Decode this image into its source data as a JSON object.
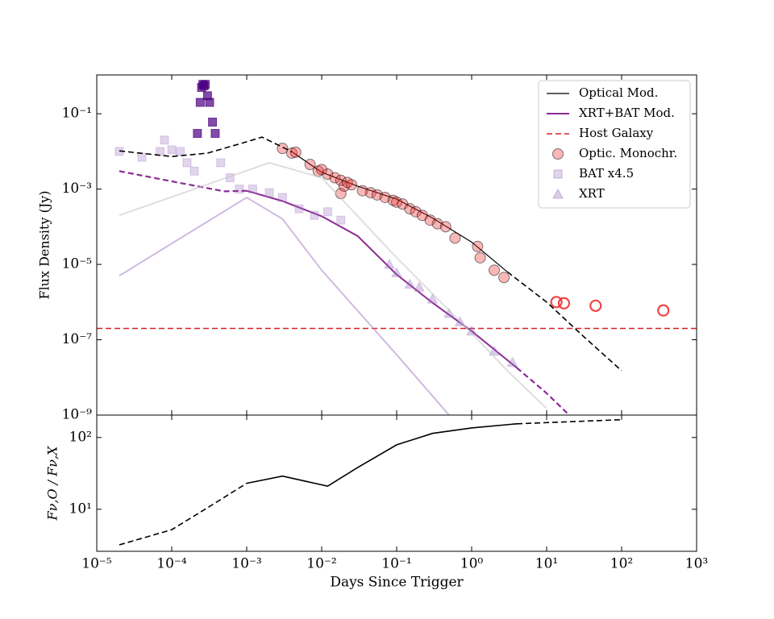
{
  "chart_data": [
    {
      "type": "line",
      "ylabel": "Flux Density (Jy)",
      "xlog": true,
      "ylog": true,
      "xlim": [
        1e-05,
        1000
      ],
      "ylim": [
        1e-09,
        1.07
      ],
      "xticks": [
        1e-05,
        0.0001,
        0.001,
        0.01,
        0.1,
        1,
        10,
        100,
        1000
      ],
      "yticks": [
        {
          "value": 0.1,
          "label": "10⁻¹"
        },
        {
          "value": 0.001,
          "label": "10⁻³"
        },
        {
          "value": 1e-05,
          "label": "10⁻⁵"
        },
        {
          "value": 1e-07,
          "label": "10⁻⁷"
        },
        {
          "value": 1e-09,
          "label": "10⁻⁹"
        }
      ],
      "legend": "upper right",
      "series": [
        {
          "name": "Optical Mod.",
          "kind": "line",
          "color": "#000000",
          "width": 1.2,
          "x": [
            0.004,
            0.01,
            0.03,
            0.1,
            0.3,
            1,
            3
          ],
          "values": [
            0.0098,
            0.0028,
            0.0012,
            0.00054,
            0.00017,
            3.9e-05,
            6.3e-06
          ]
        },
        {
          "name": "XRT+BAT Mod.",
          "kind": "line",
          "color": "#8b2c94",
          "width": 2,
          "x": [
            0.001,
            0.003,
            0.01,
            0.03,
            0.1,
            0.3,
            1,
            4
          ],
          "values": [
            0.0009,
            0.00048,
            0.00019,
            5.7e-05,
            5.4e-06,
            9.6e-07,
            1.7e-07,
            1.8e-08
          ]
        },
        {
          "name": "Host Galaxy",
          "kind": "line",
          "dash": true,
          "color": "#d62020",
          "width": 1.6,
          "x": [
            1e-05,
            1000
          ],
          "values": [
            2e-07,
            2e-07
          ]
        },
        {
          "name": "Optic. Monochr.",
          "kind": "scatter",
          "marker": "o",
          "color": "#f03030",
          "opacity": 0.35,
          "edge": "#000000",
          "x": [
            0.003,
            0.004,
            0.0045,
            0.007,
            0.009,
            0.01,
            0.012,
            0.015,
            0.018,
            0.018,
            0.02,
            0.022,
            0.025,
            0.035,
            0.045,
            0.055,
            0.07,
            0.09,
            0.1,
            0.12,
            0.15,
            0.18,
            0.22,
            0.28,
            0.35,
            0.45,
            0.6,
            1.2,
            1.3,
            2,
            2.7
          ],
          "values": [
            0.012,
            0.009,
            0.0095,
            0.0045,
            0.003,
            0.0033,
            0.0025,
            0.002,
            0.0017,
            0.00076,
            0.0012,
            0.0015,
            0.0013,
            0.0009,
            0.0008,
            0.0007,
            0.0006,
            0.0005,
            0.00045,
            0.0004,
            0.0003,
            0.00025,
            0.0002,
            0.00015,
            0.00012,
            0.0001,
            5e-05,
            3e-05,
            1.5e-05,
            7e-06,
            4.5e-06
          ]
        },
        {
          "name": "BAT x4.5",
          "kind": "scatter",
          "marker": "s",
          "color": "#9b72c0",
          "opacity": 0.3,
          "x": [
            2e-05,
            4e-05,
            7e-05,
            8e-05,
            0.0001,
            0.00013,
            0.00016,
            0.0002,
            0.00045,
            0.0006,
            0.0008,
            0.0012,
            0.002,
            0.003,
            0.005,
            0.008,
            0.012,
            0.018
          ],
          "values": [
            0.01,
            0.007,
            0.01,
            0.02,
            0.011,
            0.01,
            0.005,
            0.003,
            0.005,
            0.002,
            0.001,
            0.001,
            0.0008,
            0.0006,
            0.0003,
            0.0002,
            0.00025,
            0.00015
          ]
        },
        {
          "name": "XRT",
          "kind": "scatter",
          "marker": "^",
          "color": "#9b72c0",
          "opacity": 0.35,
          "x": [
            0.08,
            0.1,
            0.15,
            0.2,
            0.3,
            0.5,
            0.7,
            1,
            2,
            3.5
          ],
          "values": [
            1e-05,
            6e-06,
            3e-06,
            2.5e-06,
            1.2e-06,
            5e-07,
            3e-07,
            1.7e-07,
            5e-08,
            2.5e-08
          ]
        },
        {
          "kind": "line",
          "color": "#000000",
          "width": 1.6,
          "dash": true,
          "x": [
            2e-05,
            0.0001,
            0.0003,
            0.001,
            0.0016,
            0.004,
            null,
            3,
            10,
            30,
            100
          ],
          "values": [
            0.0103,
            0.0073,
            0.009,
            0.018,
            0.024,
            0.0098,
            null,
            6.3e-06,
            1e-06,
            1.3e-07,
            1.5e-08
          ]
        },
        {
          "kind": "line",
          "color": "#8b2c94",
          "width": 2.2,
          "dash": true,
          "x": [
            2e-05,
            0.0001,
            0.0005,
            0.001,
            null,
            4,
            10,
            20
          ],
          "values": [
            0.003,
            0.0016,
            0.00087,
            0.0009,
            null,
            1.8e-08,
            3.8e-09,
            1e-09
          ]
        },
        {
          "kind": "line",
          "color": "#c8c8c8",
          "width": 2,
          "opacity": 0.6,
          "x": [
            2e-05,
            0.002,
            0.01,
            0.1,
            1,
            3,
            10
          ],
          "values": [
            0.0002,
            0.005,
            0.002,
            1.5e-05,
            1.5e-07,
            1.5e-08,
            1.5e-09
          ]
        },
        {
          "kind": "line",
          "color": "#b08ccc",
          "width": 2,
          "opacity": 0.6,
          "x": [
            2e-05,
            0.001,
            0.003,
            0.01,
            0.1,
            0.5
          ],
          "values": [
            5e-06,
            0.0006,
            0.00016,
            7e-06,
            4e-08,
            1e-09
          ]
        },
        {
          "kind": "scatter",
          "marker": "s",
          "color": "#4b0082",
          "opacity": 0.7,
          "x": [
            0.00022,
            0.00024,
            0.00025,
            0.00026,
            0.00027,
            0.00028,
            0.0003,
            0.00032,
            0.00035,
            0.00038
          ],
          "values": [
            0.03,
            0.2,
            0.5,
            0.6,
            0.55,
            0.6,
            0.3,
            0.2,
            0.06,
            0.03
          ]
        },
        {
          "kind": "scatter",
          "marker": "o",
          "color": "#f03030",
          "opacity": 0.35,
          "open": true,
          "x": [
            13.5,
            17,
            45,
            360
          ],
          "values": [
            1e-06,
            9.3e-07,
            8e-07,
            6e-07
          ]
        }
      ]
    },
    {
      "type": "line",
      "ylabel": "Fν,O / Fν,X",
      "xlabel": "Days Since Trigger",
      "xlog": true,
      "ylog": true,
      "xlim": [
        1e-05,
        1000
      ],
      "ylim": [
        2.6,
        205
      ],
      "xticks": [
        {
          "value": 1e-05,
          "label": "10⁻⁵"
        },
        {
          "value": 0.0001,
          "label": "10⁻⁴"
        },
        {
          "value": 0.001,
          "label": "10⁻³"
        },
        {
          "value": 0.01,
          "label": "10⁻²"
        },
        {
          "value": 0.1,
          "label": "10⁻¹"
        },
        {
          "value": 1,
          "label": "10⁰"
        },
        {
          "value": 10,
          "label": "10¹"
        },
        {
          "value": 100,
          "label": "10²"
        },
        {
          "value": 1000,
          "label": "10³"
        }
      ],
      "yticks": [
        {
          "value": 10,
          "label": "10¹"
        },
        {
          "value": 100,
          "label": "10²"
        }
      ],
      "series": [
        {
          "kind": "line",
          "color": "#000000",
          "width": 1.6,
          "x": [
            0.001,
            0.003,
            0.012,
            0.03,
            0.1,
            0.3,
            1,
            4
          ],
          "values": [
            23,
            29,
            21,
            38,
            79,
            114,
            136,
            155
          ]
        },
        {
          "kind": "line",
          "color": "#000000",
          "width": 1.6,
          "dash": true,
          "x": [
            2e-05,
            0.0001,
            0.0003,
            0.001,
            null,
            4,
            100
          ],
          "values": [
            3.2,
            5.2,
            10.5,
            23,
            null,
            155,
            177
          ]
        }
      ]
    }
  ]
}
